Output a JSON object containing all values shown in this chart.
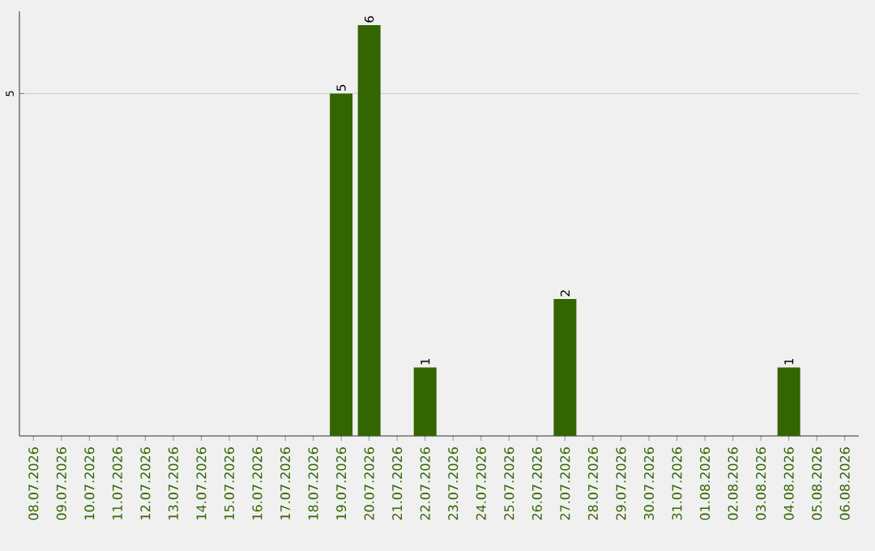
{
  "chart_data": {
    "type": "bar",
    "categories": [
      "08.07.2026",
      "09.07.2026",
      "10.07.2026",
      "11.07.2026",
      "12.07.2026",
      "13.07.2026",
      "14.07.2026",
      "15.07.2026",
      "16.07.2026",
      "17.07.2026",
      "18.07.2026",
      "19.07.2026",
      "20.07.2026",
      "21.07.2026",
      "22.07.2026",
      "23.07.2026",
      "24.07.2026",
      "25.07.2026",
      "26.07.2026",
      "27.07.2026",
      "28.07.2026",
      "29.07.2026",
      "30.07.2026",
      "31.07.2026",
      "01.08.2026",
      "02.08.2026",
      "03.08.2026",
      "04.08.2026",
      "05.08.2026",
      "06.08.2026"
    ],
    "values": [
      0,
      0,
      0,
      0,
      0,
      0,
      0,
      0,
      0,
      0,
      0,
      5,
      6,
      0,
      1,
      0,
      0,
      0,
      0,
      2,
      0,
      0,
      0,
      0,
      0,
      0,
      0,
      1,
      0,
      0
    ],
    "value_labels": [
      null,
      null,
      null,
      null,
      null,
      null,
      null,
      null,
      null,
      null,
      null,
      "5",
      "6",
      null,
      "1",
      null,
      null,
      null,
      null,
      "2",
      null,
      null,
      null,
      null,
      null,
      null,
      null,
      "1",
      null,
      null
    ],
    "color": "#336600",
    "ylim": [
      0,
      6.2
    ],
    "yticks": [
      5
    ],
    "grid": "y"
  }
}
